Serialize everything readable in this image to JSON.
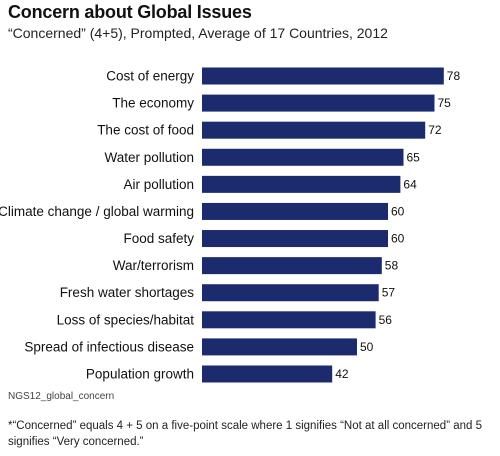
{
  "chart_data": {
    "type": "bar",
    "orientation": "horizontal",
    "title": "Concern about Global Issues",
    "subtitle": "“Concerned” (4+5), Prompted, Average of 17 Countries, 2012",
    "categories": [
      "Cost of energy",
      "The economy",
      "The cost of food",
      "Water pollution",
      "Air pollution",
      "Climate change / global warming",
      "Food safety",
      "War/terrorism",
      "Fresh water shortages",
      "Loss of species/habitat",
      "Spread of infectious disease",
      "Population growth"
    ],
    "values": [
      78,
      75,
      72,
      65,
      64,
      60,
      60,
      58,
      57,
      56,
      50,
      42
    ],
    "bar_color": "#1c2a6e",
    "grid": false,
    "legend": "none"
  },
  "source": "NGS12_global_concern",
  "footnote": "*“Concerned” equals 4 + 5 on a five-point scale where 1 signifies “Not at all concerned” and 5 signifies “Very concerned.”"
}
